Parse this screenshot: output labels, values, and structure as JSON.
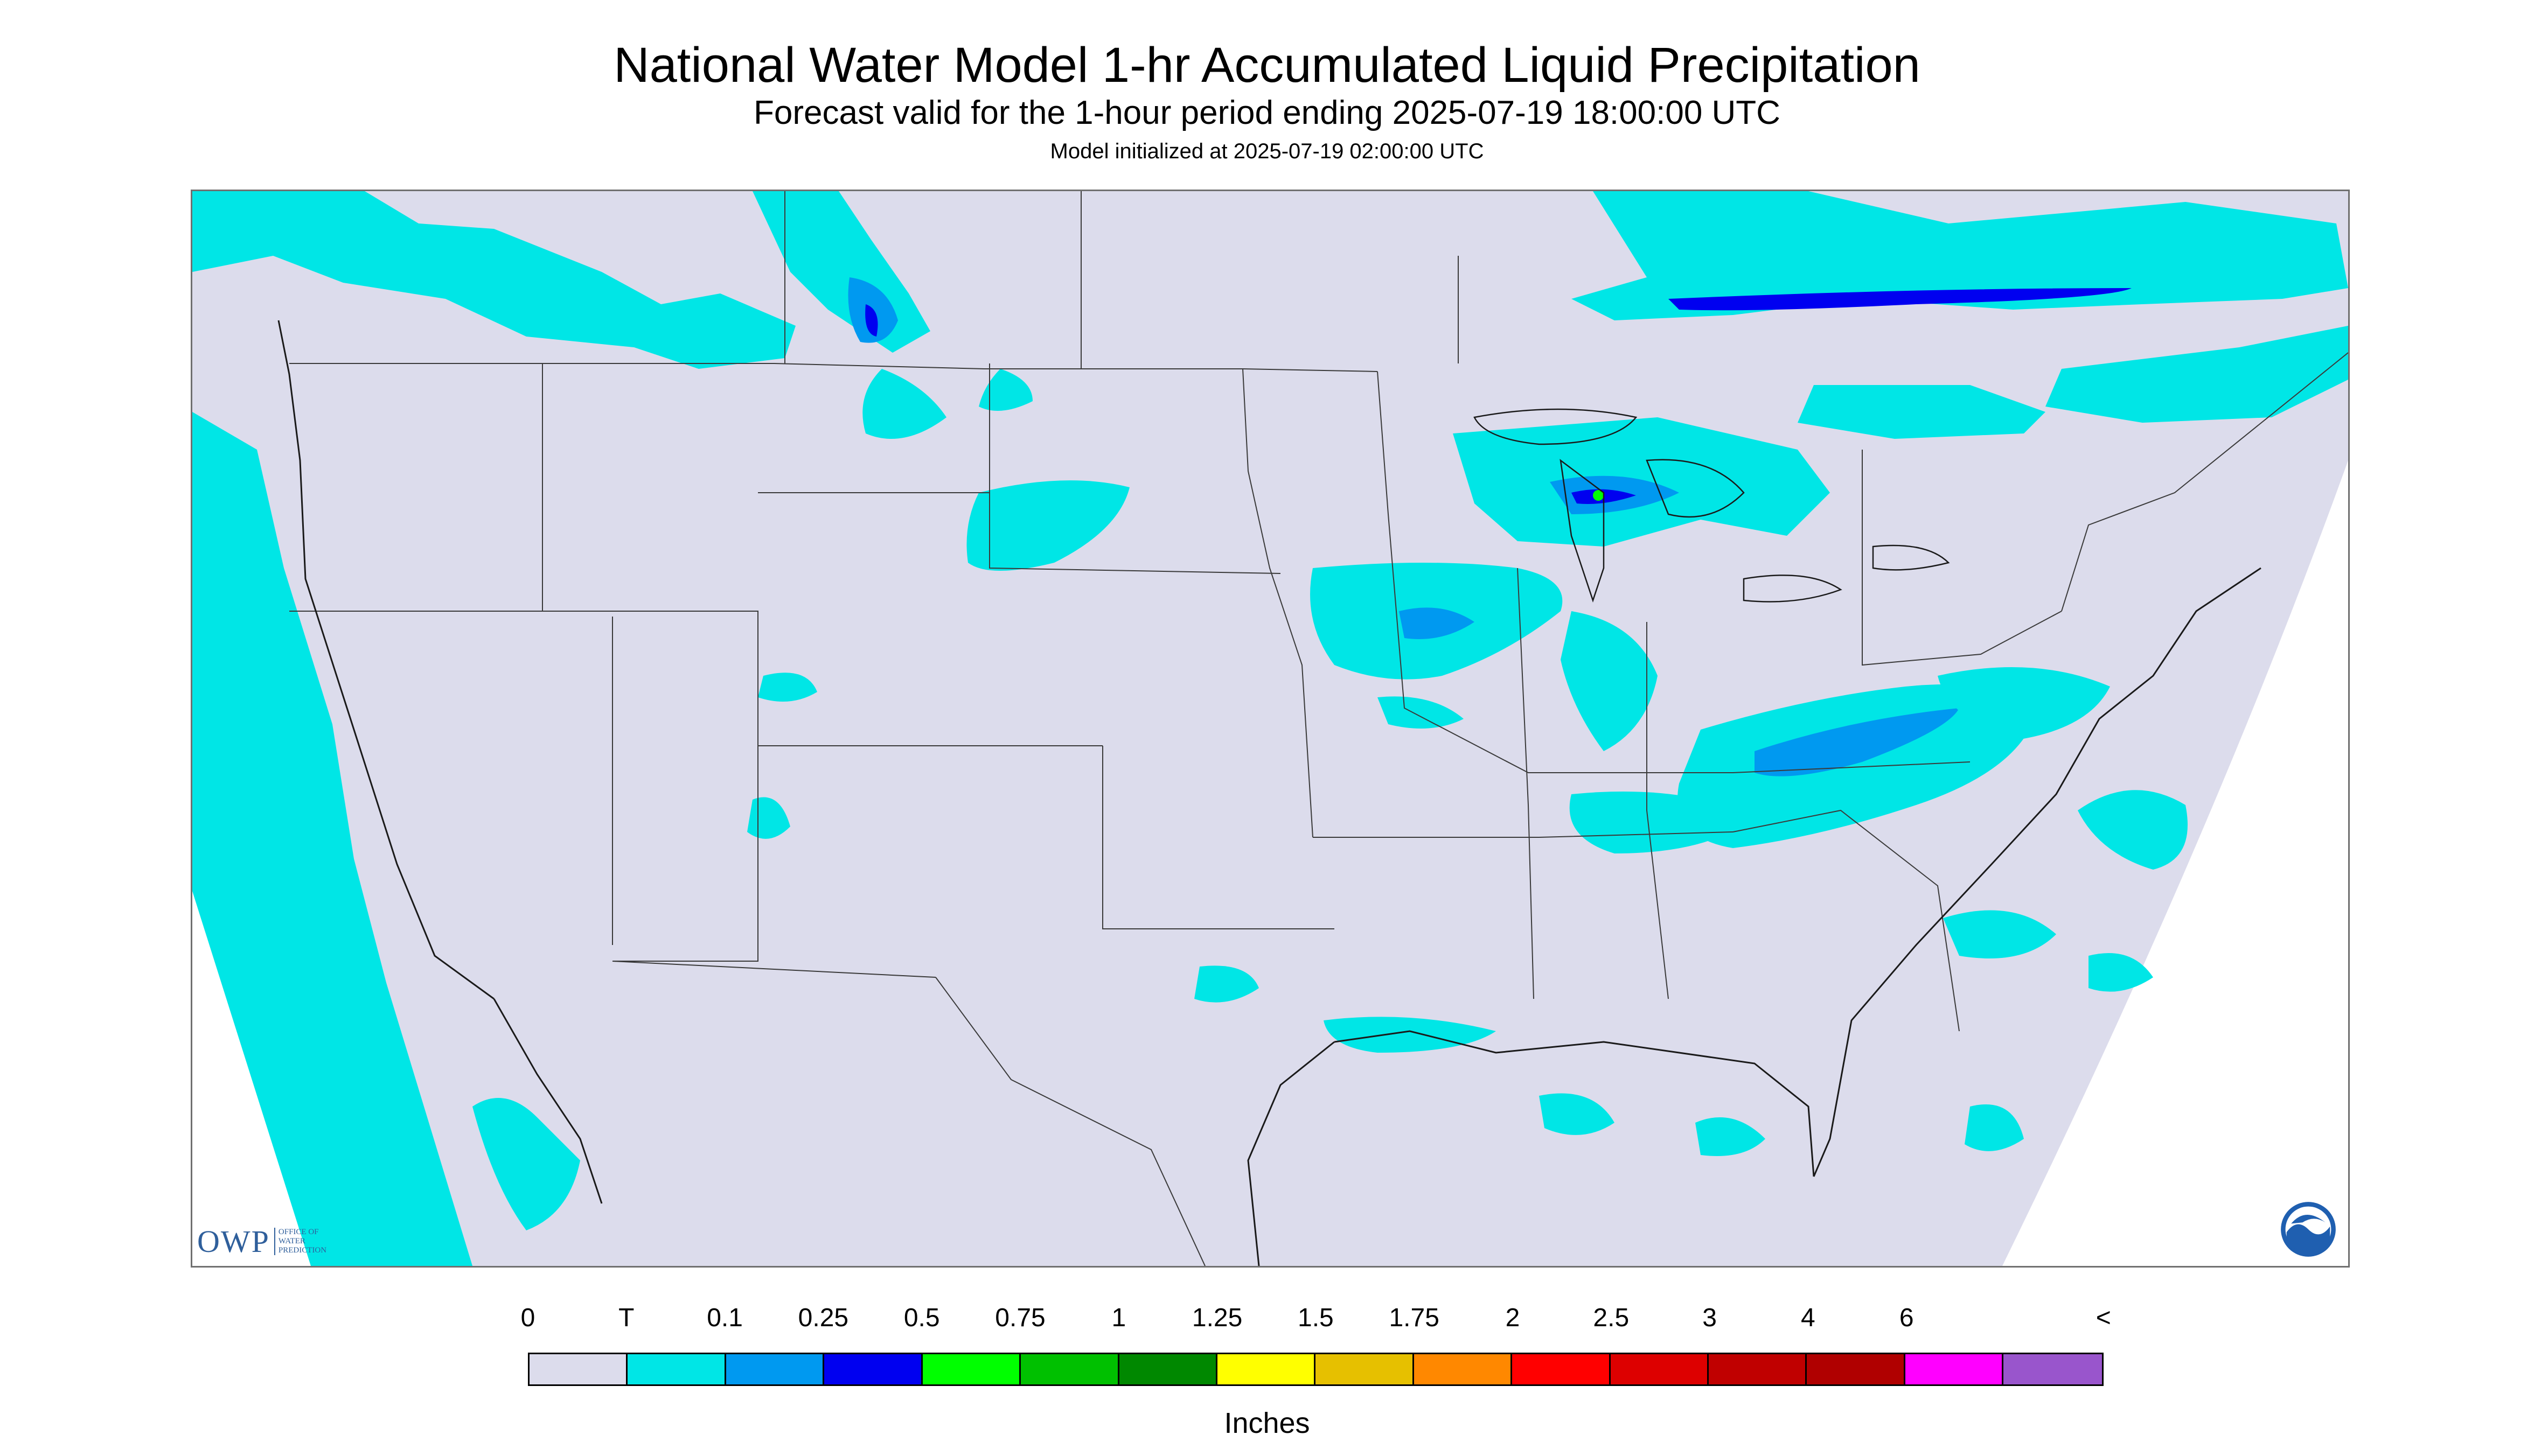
{
  "header": {
    "title": "National Water Model 1-hr Accumulated Liquid Precipitation",
    "subtitle": "Forecast valid for the 1-hour period ending 2025-07-19 18:00:00 UTC",
    "init": "Model initialized at 2025-07-19 02:00:00 UTC"
  },
  "map": {
    "background_color": "#dcdcec",
    "outside_color": "#ffffff",
    "border_color": "#3a3a3a",
    "precip_colors": [
      "#00e6e6",
      "#0099f0",
      "#0000f0",
      "#00ff00"
    ]
  },
  "logos": {
    "owp": {
      "mark": "OWP",
      "tagline": "Office of Water Prediction"
    },
    "noaa": {
      "icon": "noaa-logo-icon"
    }
  },
  "legend": {
    "labels": [
      "0",
      "T",
      "0.1",
      "0.25",
      "0.5",
      "0.75",
      "1",
      "1.25",
      "1.5",
      "1.75",
      "2",
      "2.5",
      "3",
      "4",
      "6",
      "<"
    ],
    "colors": [
      "#dcdcec",
      "#00e6e6",
      "#0099f0",
      "#0000f0",
      "#00ff00",
      "#00c000",
      "#008800",
      "#ffff00",
      "#e6c000",
      "#ff8800",
      "#ff0000",
      "#dd0000",
      "#c00000",
      "#b00000",
      "#ff00ff",
      "#9955cc"
    ],
    "units": "Inches"
  }
}
